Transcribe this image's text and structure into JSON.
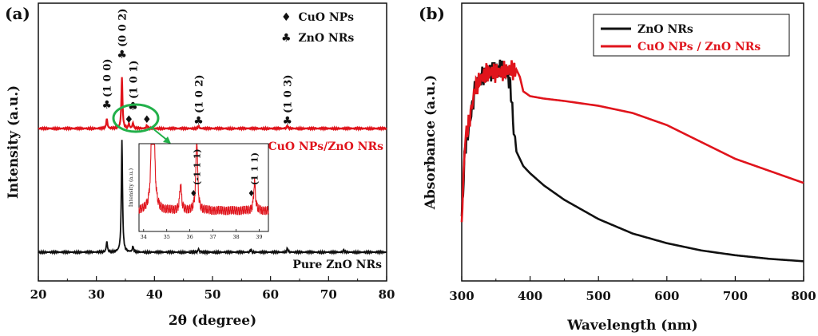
{
  "figure": {
    "panel_a_label": "(a)",
    "panel_b_label": "(b)"
  },
  "chart_data": [
    {
      "type": "line",
      "panel": "(a)",
      "title": "",
      "xlabel": "2θ (degree)",
      "ylabel": "Intensity (a.u.)",
      "xlim": [
        20,
        80
      ],
      "xticks": [
        20,
        30,
        40,
        50,
        60,
        70,
        80
      ],
      "yticks_shown": false,
      "series": [
        {
          "name": "CuO NPs/ZnO NRs",
          "color": "#e0141c",
          "baseline_rel": 0.0,
          "peaks": [
            {
              "x": 31.8,
              "h": 0.11
            },
            {
              "x": 34.4,
              "h": 0.57
            },
            {
              "x": 35.6,
              "h": 0.05
            },
            {
              "x": 36.3,
              "h": 0.06
            },
            {
              "x": 38.7,
              "h": 0.035
            },
            {
              "x": 47.6,
              "h": 0.03
            },
            {
              "x": 62.9,
              "h": 0.03
            }
          ]
        },
        {
          "name": "Pure ZnO NRs",
          "color": "#111111",
          "baseline_rel": 0.0,
          "peaks": [
            {
              "x": 31.8,
              "h": 0.095
            },
            {
              "x": 34.4,
              "h": 1.0
            },
            {
              "x": 36.3,
              "h": 0.05
            },
            {
              "x": 47.6,
              "h": 0.03
            },
            {
              "x": 56.6,
              "h": 0.02
            },
            {
              "x": 62.9,
              "h": 0.035
            },
            {
              "x": 72.6,
              "h": 0.015
            }
          ]
        }
      ],
      "legend": {
        "position": "top-right",
        "entries": [
          {
            "symbol": "♦",
            "label": "CuO NPs"
          },
          {
            "symbol": "♣",
            "label": "ZnO NRs"
          }
        ]
      },
      "curve_labels": {
        "red": "CuO NPs/ZnO NRs",
        "black": "Pure ZnO NRs"
      },
      "annotations": [
        {
          "text": "♣ (1 0 0)",
          "x": 31.8
        },
        {
          "text": "♣ (0 0 2)",
          "x": 34.4
        },
        {
          "text": "♣ (1 0 1)",
          "x": 36.3
        },
        {
          "text": "♦",
          "x": 35.6
        },
        {
          "text": "♦",
          "x": 38.7
        },
        {
          "text": "♣ (1 0 2)",
          "x": 47.6
        },
        {
          "text": "♣ (1 0 3)",
          "x": 62.9
        }
      ],
      "inset": {
        "xlabel": "2θ (degree)",
        "ylabel": "Intensity (a.u.)",
        "xlim": [
          33.8,
          39.4
        ],
        "xticks": [
          34,
          35,
          36,
          37,
          38,
          39
        ],
        "color": "#e0141c",
        "peaks": [
          {
            "x": 34.4,
            "h": 1.0
          },
          {
            "x": 35.6,
            "h": 0.1
          },
          {
            "x": 36.3,
            "h": 0.28
          },
          {
            "x": 38.8,
            "h": 0.11
          }
        ],
        "annotations": [
          {
            "text": "(-1 1 1)",
            "x": 36.3
          },
          {
            "text": "(1 1 1)",
            "x": 38.8
          }
        ]
      }
    },
    {
      "type": "line",
      "panel": "(b)",
      "title": "",
      "xlabel": "Wavelength (nm)",
      "ylabel": "Absorbance (a.u.)",
      "xlim": [
        300,
        800
      ],
      "xticks": [
        300,
        400,
        500,
        600,
        700,
        800
      ],
      "yticks_shown": false,
      "legend": {
        "position": "top-right"
      },
      "series": [
        {
          "name": "ZnO NRs",
          "color": "#111111",
          "x": [
            300,
            305,
            310,
            320,
            330,
            340,
            350,
            360,
            368,
            372,
            376,
            380,
            390,
            400,
            420,
            450,
            500,
            550,
            600,
            650,
            700,
            750,
            800
          ],
          "y": [
            0.25,
            0.55,
            0.62,
            0.8,
            0.84,
            0.86,
            0.87,
            0.87,
            0.85,
            0.78,
            0.62,
            0.53,
            0.47,
            0.44,
            0.39,
            0.33,
            0.25,
            0.19,
            0.15,
            0.12,
            0.1,
            0.085,
            0.075
          ]
        },
        {
          "name": "CuO NPs / ZnO NRs",
          "color": "#e0141c",
          "x": [
            300,
            305,
            310,
            320,
            330,
            340,
            350,
            360,
            370,
            380,
            385,
            390,
            400,
            420,
            450,
            500,
            550,
            600,
            650,
            700,
            750,
            800
          ],
          "y": [
            0.25,
            0.58,
            0.64,
            0.8,
            0.84,
            0.86,
            0.86,
            0.86,
            0.87,
            0.87,
            0.84,
            0.78,
            0.76,
            0.75,
            0.74,
            0.72,
            0.69,
            0.64,
            0.57,
            0.5,
            0.45,
            0.4
          ]
        }
      ]
    }
  ]
}
